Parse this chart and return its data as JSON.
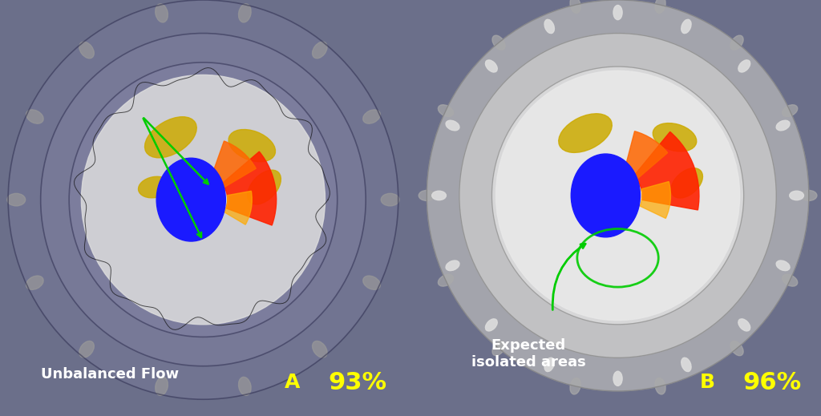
{
  "figsize": [
    10.24,
    5.19
  ],
  "dpi": 100,
  "bg_color": "#6b6f8a",
  "arrow_color": "#00cc00",
  "panel_A": {
    "label": "A",
    "percentage": "93%",
    "annotation_text": "Unbalanced Flow",
    "label_color": "#ffff00",
    "text_color": "#ffffff"
  },
  "panel_B": {
    "label": "B",
    "percentage": "96%",
    "annotation_text": "Expected\nisolated areas",
    "label_color": "#ffff00",
    "text_color": "#ffffff"
  },
  "divider_color": "#000000",
  "blue_core_color": "#1a1aff",
  "yellow_blob_color": "#ccaa00",
  "font_size_label": 18,
  "font_size_pct": 22,
  "font_size_annot": 13
}
